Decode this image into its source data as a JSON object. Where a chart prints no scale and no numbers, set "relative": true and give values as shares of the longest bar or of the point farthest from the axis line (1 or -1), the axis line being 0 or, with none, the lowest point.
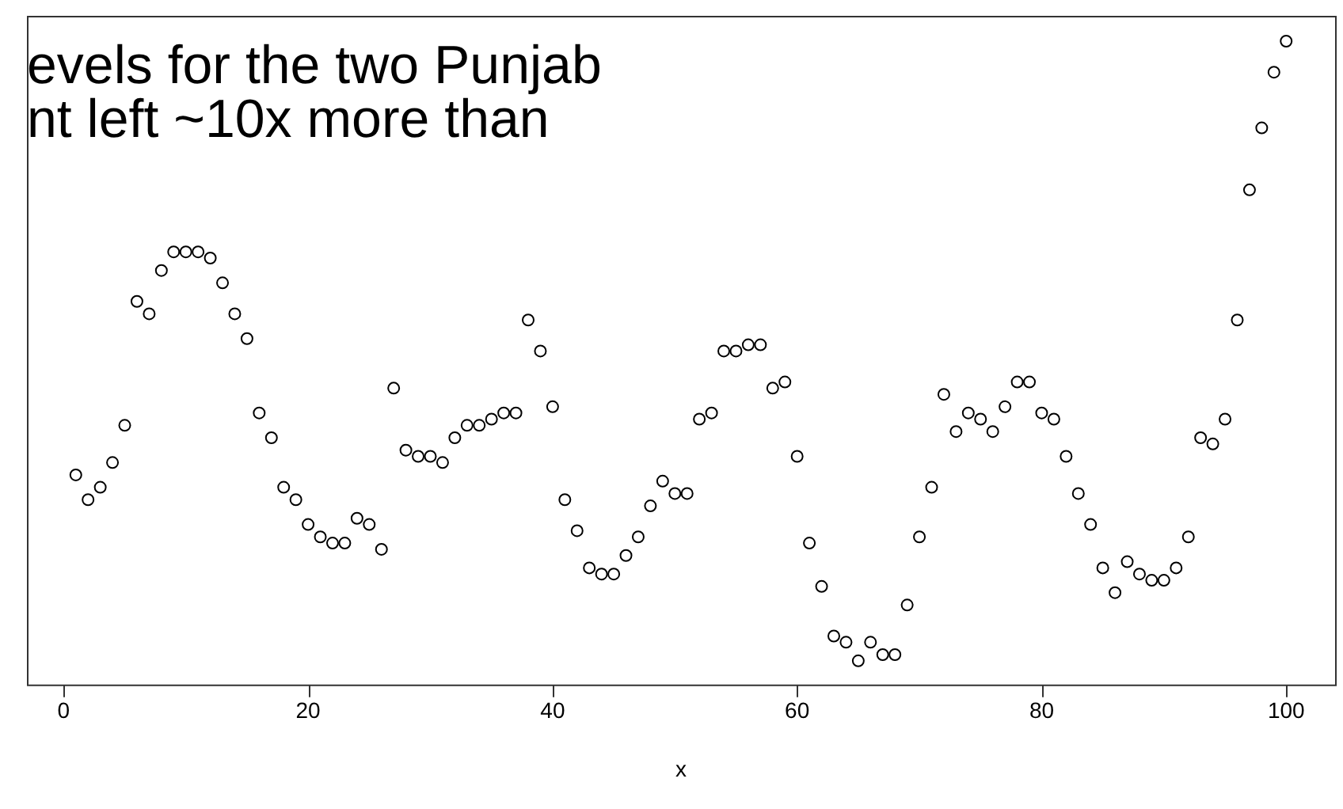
{
  "chart_data": {
    "type": "scatter",
    "title": "evels for the two Punjab\nnt left ~10x more than",
    "xlabel": "x",
    "relative": true,
    "marker": "circle",
    "grid": false,
    "legend": false,
    "xlim": [
      -3,
      104
    ],
    "xticks": [
      0,
      20,
      40,
      60,
      80,
      100
    ],
    "series": [
      {
        "color": "#000000",
        "x": [
          1,
          2,
          3,
          4,
          5,
          6,
          7,
          8,
          9,
          10,
          11,
          12,
          13,
          14,
          15,
          16,
          17,
          18,
          19,
          20,
          21,
          22,
          23,
          24,
          25,
          26,
          27,
          28,
          29,
          30,
          31,
          32,
          33,
          34,
          35,
          36,
          37,
          38,
          39,
          40,
          41,
          42,
          43,
          44,
          45,
          46,
          47,
          48,
          49,
          50,
          51,
          52,
          53,
          54,
          55,
          56,
          57,
          58,
          59,
          60,
          61,
          62,
          63,
          64,
          65,
          66,
          67,
          68,
          69,
          70,
          71,
          72,
          73,
          74,
          75,
          76,
          77,
          78,
          79,
          80,
          81,
          82,
          83,
          84,
          85,
          86,
          87,
          88,
          89,
          90,
          91,
          92,
          93,
          94,
          95,
          96,
          97,
          98,
          99,
          100
        ],
        "values": [
          0.3,
          0.26,
          0.28,
          0.32,
          0.38,
          0.58,
          0.56,
          0.63,
          0.66,
          0.66,
          0.66,
          0.65,
          0.61,
          0.56,
          0.52,
          0.4,
          0.36,
          0.28,
          0.26,
          0.22,
          0.2,
          0.19,
          0.19,
          0.23,
          0.22,
          0.18,
          0.44,
          0.34,
          0.33,
          0.33,
          0.32,
          0.36,
          0.38,
          0.38,
          0.39,
          0.4,
          0.4,
          0.55,
          0.5,
          0.41,
          0.26,
          0.21,
          0.15,
          0.14,
          0.14,
          0.17,
          0.2,
          0.25,
          0.29,
          0.27,
          0.27,
          0.39,
          0.4,
          0.5,
          0.5,
          0.51,
          0.51,
          0.44,
          0.45,
          0.33,
          0.19,
          0.12,
          0.04,
          0.03,
          0,
          0.03,
          0.01,
          0.01,
          0.09,
          0.2,
          0.28,
          0.43,
          0.37,
          0.4,
          0.39,
          0.37,
          0.41,
          0.45,
          0.45,
          0.4,
          0.39,
          0.33,
          0.27,
          0.22,
          0.15,
          0.11,
          0.16,
          0.14,
          0.13,
          0.13,
          0.15,
          0.2,
          0.36,
          0.35,
          0.39,
          0.55,
          0.76,
          0.86,
          0.95,
          1
        ]
      }
    ]
  }
}
